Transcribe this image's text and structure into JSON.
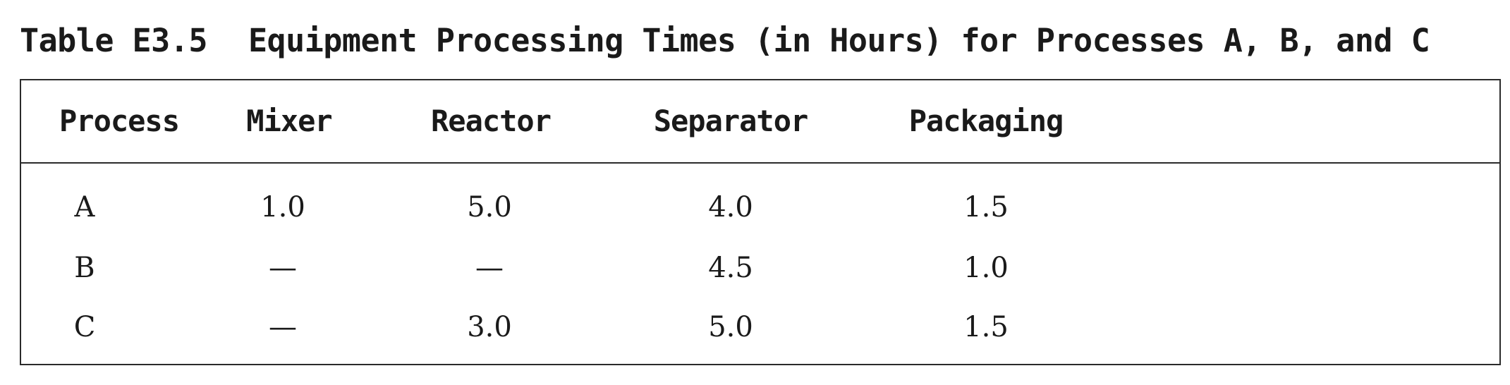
{
  "caption": {
    "label": "Table E3.5",
    "title": "Equipment Processing Times (in Hours) for Processes A, B, and C"
  },
  "table": {
    "headers": [
      "Process",
      "Mixer",
      "Reactor",
      "Separator",
      "Packaging"
    ],
    "rows": [
      [
        "A",
        "1.0",
        "5.0",
        "4.0",
        "1.5"
      ],
      [
        "B",
        "—",
        "—",
        "4.5",
        "1.0"
      ],
      [
        "C",
        "—",
        "3.0",
        "5.0",
        "1.5"
      ]
    ]
  }
}
